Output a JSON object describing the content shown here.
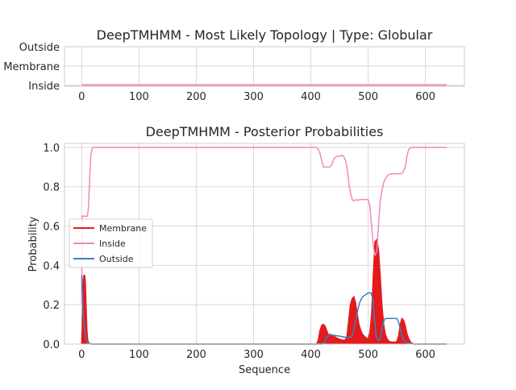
{
  "chart_data": [
    {
      "type": "line",
      "title": "DeepTMHMM - Most Likely Topology | Type: Globular",
      "xlabel": "",
      "ylabel": "",
      "xlim": [
        -30,
        668
      ],
      "x_ticks": [
        0,
        100,
        200,
        300,
        400,
        500,
        600
      ],
      "y_categories": [
        "Inside",
        "Membrane",
        "Outside"
      ],
      "grid": true,
      "series": [
        {
          "color": "#f088c0",
          "x": [
            0,
            637
          ],
          "y": [
            "Inside",
            "Inside"
          ]
        }
      ]
    },
    {
      "type": "area",
      "title": "DeepTMHMM - Posterior Probabilities",
      "xlabel": "Sequence",
      "ylabel": "Probability",
      "xlim": [
        -30,
        668
      ],
      "ylim": [
        0,
        1.02
      ],
      "x_ticks": [
        0,
        100,
        200,
        300,
        400,
        500,
        600
      ],
      "y_ticks": [
        0.0,
        0.2,
        0.4,
        0.6,
        0.8,
        1.0
      ],
      "grid": true,
      "legend_placement": "center-left",
      "series": [
        {
          "name": "Membrane",
          "style": "filled",
          "color": "#e41a1c",
          "x": [
            0,
            1,
            2,
            3,
            4,
            5,
            6,
            7,
            8,
            9,
            10,
            11,
            12,
            13,
            14,
            15,
            16,
            18,
            20,
            30,
            100,
            200,
            300,
            400,
            410,
            413,
            416,
            419,
            422,
            425,
            428,
            431,
            434,
            437,
            440,
            443,
            446,
            450,
            455,
            460,
            463,
            466,
            469,
            472,
            475,
            478,
            481,
            484,
            487,
            490,
            495,
            500,
            503,
            506,
            509,
            512,
            515,
            518,
            521,
            524,
            527,
            530,
            533,
            536,
            540,
            545,
            550,
            553,
            556,
            559,
            562,
            565,
            568,
            571,
            574,
            577,
            580,
            590,
            600,
            637
          ],
          "y": [
            0.0,
            0.08,
            0.22,
            0.33,
            0.35,
            0.35,
            0.33,
            0.26,
            0.16,
            0.08,
            0.035,
            0.015,
            0.008,
            0.004,
            0.002,
            0.001,
            0.0,
            0.0,
            0.0,
            0.0,
            0.0,
            0.0,
            0.0,
            0.0,
            0.0,
            0.02,
            0.07,
            0.095,
            0.1,
            0.09,
            0.065,
            0.045,
            0.05,
            0.045,
            0.04,
            0.035,
            0.03,
            0.025,
            0.02,
            0.02,
            0.04,
            0.12,
            0.2,
            0.23,
            0.24,
            0.21,
            0.15,
            0.1,
            0.07,
            0.05,
            0.035,
            0.025,
            0.06,
            0.15,
            0.35,
            0.52,
            0.53,
            0.48,
            0.35,
            0.2,
            0.1,
            0.05,
            0.025,
            0.015,
            0.01,
            0.01,
            0.012,
            0.04,
            0.1,
            0.13,
            0.12,
            0.09,
            0.05,
            0.025,
            0.01,
            0.004,
            0.0,
            0.0,
            0.0,
            0.0
          ]
        },
        {
          "name": "Inside",
          "style": "line",
          "color": "#f088c0",
          "x": [
            0,
            1,
            5,
            10,
            12,
            14,
            16,
            18,
            20,
            30,
            100,
            200,
            300,
            400,
            405,
            410,
            413,
            416,
            419,
            422,
            430,
            433,
            436,
            440,
            443,
            446,
            449,
            455,
            458,
            461,
            464,
            467,
            470,
            473,
            476,
            479,
            482,
            485,
            490,
            495,
            500,
            503,
            506,
            509,
            512,
            515,
            518,
            521,
            524,
            527,
            530,
            535,
            540,
            545,
            550,
            555,
            560,
            565,
            568,
            571,
            575,
            580,
            600,
            637
          ],
          "y": [
            0.2,
            0.65,
            0.65,
            0.65,
            0.7,
            0.85,
            0.96,
            0.99,
            1.0,
            1.0,
            1.0,
            1.0,
            1.0,
            1.0,
            1.0,
            1.0,
            0.99,
            0.97,
            0.93,
            0.9,
            0.9,
            0.9,
            0.91,
            0.94,
            0.95,
            0.955,
            0.955,
            0.96,
            0.95,
            0.93,
            0.88,
            0.8,
            0.76,
            0.73,
            0.73,
            0.735,
            0.73,
            0.735,
            0.735,
            0.735,
            0.735,
            0.7,
            0.6,
            0.5,
            0.45,
            0.47,
            0.6,
            0.72,
            0.78,
            0.82,
            0.84,
            0.86,
            0.865,
            0.865,
            0.865,
            0.865,
            0.87,
            0.9,
            0.96,
            0.99,
            1.0,
            1.0,
            1.0,
            1.0
          ]
        },
        {
          "name": "Outside",
          "style": "line",
          "color": "#3b7fc0",
          "x": [
            0,
            1,
            3,
            5,
            7,
            9,
            12,
            16,
            20,
            30,
            100,
            200,
            300,
            400,
            415,
            420,
            424,
            427,
            430,
            434,
            440,
            450,
            460,
            470,
            473,
            477,
            481,
            485,
            490,
            495,
            500,
            505,
            508,
            511,
            514,
            517,
            520,
            523,
            526,
            530,
            535,
            540,
            545,
            550,
            552,
            555,
            558,
            562,
            566,
            570,
            580,
            600,
            637
          ],
          "y": [
            0.35,
            0.27,
            0.15,
            0.08,
            0.03,
            0.01,
            0.003,
            0.001,
            0.0,
            0.0,
            0.0,
            0.0,
            0.0,
            0.0,
            0.0,
            0.0,
            0.01,
            0.03,
            0.04,
            0.045,
            0.045,
            0.04,
            0.035,
            0.035,
            0.05,
            0.1,
            0.16,
            0.21,
            0.24,
            0.25,
            0.26,
            0.26,
            0.23,
            0.13,
            0.04,
            0.02,
            0.02,
            0.05,
            0.11,
            0.13,
            0.13,
            0.13,
            0.13,
            0.13,
            0.12,
            0.09,
            0.05,
            0.02,
            0.008,
            0.003,
            0.0,
            0.0,
            0.0
          ]
        }
      ]
    }
  ]
}
